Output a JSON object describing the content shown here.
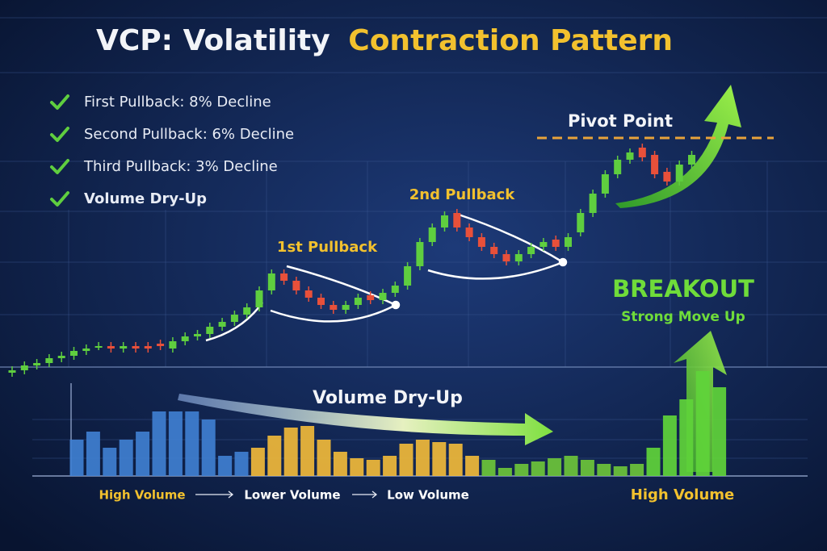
{
  "chart_data": {
    "type": "candlestick",
    "title": {
      "lead": "VCP: Volatility",
      "highlight": "Contraction Pattern"
    },
    "checklist": [
      "First Pullback: 8% Decline",
      "Second Pullback: 6% Decline",
      "Third Pullback: 3% Decline",
      "Volume Dry-Up"
    ],
    "annotations": {
      "pivot": "Pivot Point",
      "pullback1": "1st Pullback",
      "pullback2": "2nd Pullback",
      "breakout": "BREAKOUT",
      "breakout_sub": "Strong Move Up",
      "volume": "Volume Dry-Up"
    },
    "pivot_level": 103,
    "pivot_color": "#e8a33a",
    "ylim": [
      0,
      100
    ],
    "up_color": "#5fce3f",
    "down_color": "#e8503a",
    "open": [
      6,
      7,
      9,
      10,
      12,
      13,
      15,
      17,
      17,
      16,
      17,
      17,
      18,
      16,
      19,
      21,
      22,
      25,
      27,
      30,
      33,
      40,
      47,
      44,
      40,
      37,
      34,
      32,
      34,
      38,
      36,
      39,
      42,
      50,
      60,
      66,
      72,
      66,
      62,
      58,
      55,
      52,
      55,
      58,
      61,
      58,
      64,
      72,
      80,
      88,
      94,
      99,
      96,
      89,
      85,
      92
    ],
    "close": [
      7,
      9,
      10,
      12,
      13,
      15,
      16,
      17,
      16,
      17,
      16,
      16,
      17,
      19,
      21,
      22,
      25,
      27,
      30,
      33,
      40,
      47,
      44,
      40,
      37,
      34,
      32,
      34,
      37,
      36,
      39,
      42,
      50,
      60,
      66,
      71,
      66,
      62,
      58,
      55,
      52,
      55,
      58,
      60,
      58,
      62,
      72,
      80,
      88,
      94,
      97,
      95,
      88,
      85,
      92,
      96
    ],
    "volume": {
      "ylim": [
        0,
        140
      ],
      "groups": [
        {
          "label": "High Volume",
          "color": "#3f7fd0",
          "label_color": "#f2c12e",
          "values": [
            45,
            55,
            35,
            45,
            55,
            80,
            80,
            80,
            70,
            25,
            30
          ]
        },
        {
          "label": "Lower Volume",
          "color": "#f0b93a",
          "label_color": "#ffffff",
          "values": [
            35,
            50,
            60,
            62,
            45,
            30,
            22,
            20,
            25,
            40,
            45,
            42,
            40,
            25
          ]
        },
        {
          "label": "Low Volume",
          "color": "#6cc43a",
          "label_color": "#ffffff",
          "values": [
            20,
            10,
            15,
            18,
            22,
            25,
            20,
            15,
            12,
            15
          ]
        },
        {
          "label": "High Volume",
          "color": "#5fd43a",
          "label_color": "#f2c12e",
          "values": [
            35,
            75,
            95,
            130,
            110
          ]
        }
      ]
    }
  }
}
